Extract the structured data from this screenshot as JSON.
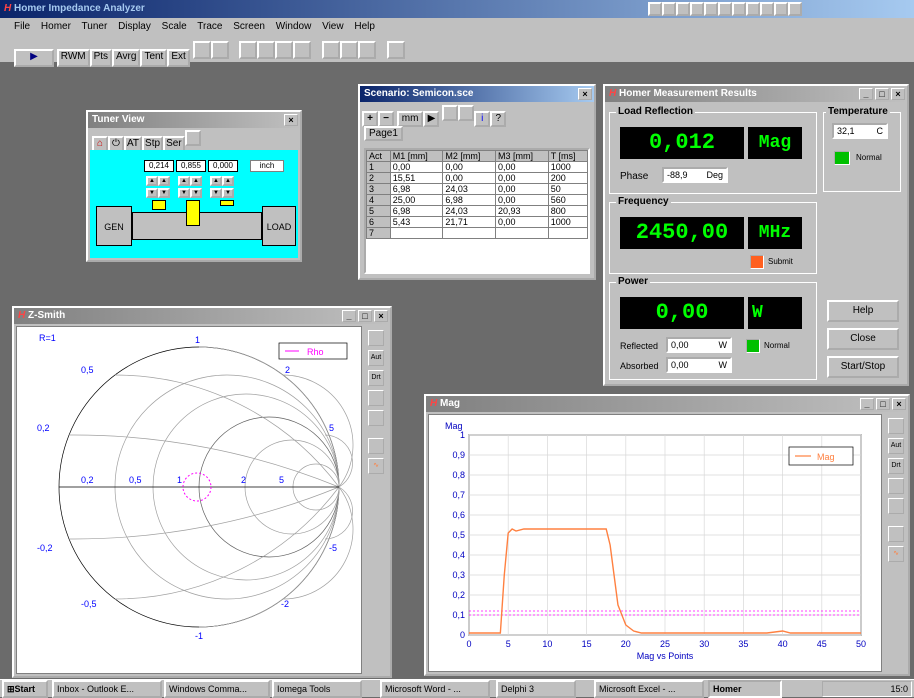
{
  "app": {
    "title": "Homer Impedance Analyzer",
    "menu": [
      "File",
      "Homer",
      "Tuner",
      "Display",
      "Scale",
      "Trace",
      "Screen",
      "Window",
      "View",
      "Help"
    ],
    "toolbar": [
      "RWM",
      "Pts",
      "Avrg",
      "Tent",
      "Ext"
    ]
  },
  "tuner": {
    "title": "Tuner View",
    "buttons": [
      "AT",
      "Stp",
      "Ser"
    ],
    "values": [
      "0,214",
      "0,855",
      "0,000"
    ],
    "unit": "inch",
    "gen": "GEN",
    "load": "LOAD"
  },
  "scenario": {
    "title": "Scenario:  Semicon.sce",
    "unit_btn": "mm",
    "tab": "Page1",
    "columns": [
      "Act",
      "M1 [mm]",
      "M2 [mm]",
      "M3 [mm]",
      "T [ms]"
    ],
    "rows": [
      [
        "1",
        "0,00",
        "0,00",
        "0,00",
        "1000"
      ],
      [
        "2",
        "15,51",
        "0,00",
        "0,00",
        "200"
      ],
      [
        "3",
        "6,98",
        "24,03",
        "0,00",
        "50"
      ],
      [
        "4",
        "25,00",
        "6,98",
        "0,00",
        "560"
      ],
      [
        "5",
        "6,98",
        "24,03",
        "20,93",
        "800"
      ],
      [
        "6",
        "5,43",
        "21,71",
        "0,00",
        "1000"
      ],
      [
        "7",
        "",
        "",
        "",
        ""
      ]
    ]
  },
  "results": {
    "title": "Homer Measurement Results",
    "load_reflection": "Load Reflection",
    "refl_value": "0,012",
    "refl_unit": "Mag",
    "phase_label": "Phase",
    "phase_value": "-88,9",
    "phase_unit": "Deg",
    "frequency": "Frequency",
    "freq_value": "2450,00",
    "freq_unit": "MHz",
    "submit": "Submit",
    "power": "Power",
    "power_value": "0,00",
    "power_unit": "W",
    "reflected_label": "Reflected",
    "reflected_value": "0,00",
    "absorbed_label": "Absorbed",
    "absorbed_value": "0,00",
    "w": "W",
    "normal": "Normal",
    "temperature": "Temperature",
    "temp_value": "32,1",
    "temp_unit": "C",
    "temp_normal": "Normal",
    "help": "Help",
    "close": "Close",
    "startstop": "Start/Stop",
    "colors": {
      "lcd_bg": "#000000",
      "lcd_fg": "#00ff00",
      "normal": "#00c000",
      "submit": "#ff6020"
    }
  },
  "smith": {
    "title": "Z-Smith",
    "r_label": "R=1",
    "legend": "Rho",
    "labels": [
      "1",
      "0,5",
      "2",
      "0,2",
      "5",
      "0,2",
      "0,5",
      "1",
      "2",
      "5",
      "-0,2",
      "-0,5",
      "-1",
      "-2",
      "-5"
    ],
    "side": [
      "Aut",
      "Drt"
    ]
  },
  "mag": {
    "title": "Mag",
    "side": [
      "Aut",
      "Drt"
    ],
    "chart_data": {
      "type": "line",
      "ylabel": "Mag",
      "xlabel": "Mag vs Points",
      "xlim": [
        0,
        50
      ],
      "ylim": [
        0,
        1
      ],
      "x_ticks": [
        "0",
        "5",
        "10",
        "15",
        "20",
        "25",
        "30",
        "35",
        "40",
        "45",
        "50"
      ],
      "y_ticks": [
        "0",
        "0,1",
        "0,2",
        "0,3",
        "0,4",
        "0,5",
        "0,6",
        "0,7",
        "0,8",
        "0,9",
        "1"
      ],
      "series": [
        {
          "name": "Mag",
          "x": [
            0,
            4,
            4.5,
            5,
            5.5,
            6,
            7,
            8,
            10,
            12,
            14,
            16,
            17.5,
            18,
            18.5,
            19,
            20,
            21,
            22,
            24,
            30,
            38,
            40,
            41,
            42,
            50
          ],
          "y": [
            0.01,
            0.01,
            0.3,
            0.51,
            0.53,
            0.52,
            0.53,
            0.53,
            0.53,
            0.53,
            0.53,
            0.53,
            0.53,
            0.45,
            0.3,
            0.15,
            0.05,
            0.02,
            0.01,
            0.01,
            0.01,
            0.01,
            0.02,
            0.01,
            0.01,
            0.01
          ]
        }
      ],
      "threshold": [
        0.12,
        0.1
      ],
      "color": "#ff8040"
    }
  },
  "taskbar": {
    "start": "Start",
    "items": [
      "Inbox - Outlook E...",
      "Windows Comma...",
      "Iomega Tools",
      "Microsoft Word - ...",
      "Delphi 3",
      "Microsoft Excel - ...",
      "Homer"
    ],
    "clock": "15:0"
  }
}
